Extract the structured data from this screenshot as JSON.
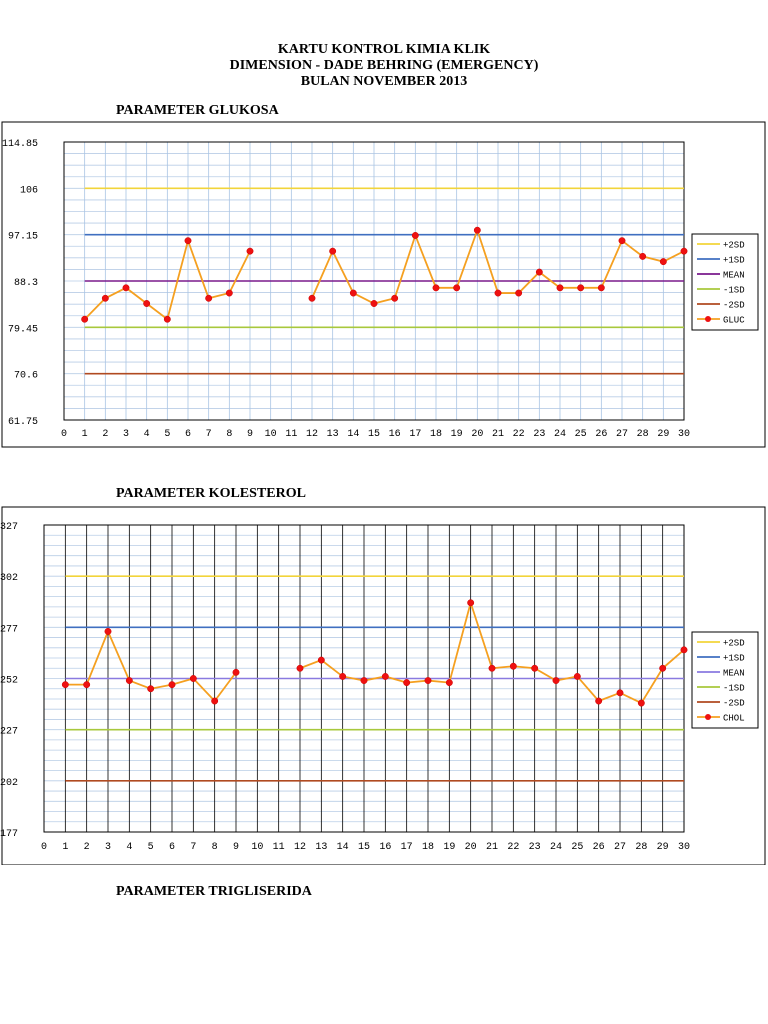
{
  "header": {
    "line1": "KARTU KONTROL KIMIA KLIK",
    "line2": "DIMENSION - DADE BEHRING (EMERGENCY)",
    "line3": "BULAN NOVEMBER 2013"
  },
  "sections": {
    "glukosa": "PARAMETER GLUKOSA",
    "kolesterol": "PARAMETER KOLESTEROL",
    "trigliserida": "PARAMETER TRIGLISERIDA"
  },
  "chart_data": [
    {
      "type": "line",
      "title": "PARAMETER GLUKOSA",
      "xlim": [
        0,
        30
      ],
      "ylim": [
        61.75,
        114.85
      ],
      "yticks": [
        61.75,
        70.6,
        79.45,
        88.3,
        97.15,
        106,
        114.85
      ],
      "ytick_labels": [
        "61.75",
        "70.6",
        "79.45",
        "88.3",
        "97.15",
        "106",
        "114.85"
      ],
      "xticks": [
        0,
        1,
        2,
        3,
        4,
        5,
        6,
        7,
        8,
        9,
        10,
        11,
        12,
        13,
        14,
        15,
        16,
        17,
        18,
        19,
        20,
        21,
        22,
        23,
        24,
        25,
        26,
        27,
        28,
        29,
        30
      ],
      "grid": "vertical and horizontal",
      "control_lines": [
        {
          "name": "+2SD",
          "value": 106,
          "color": "#f2d43a"
        },
        {
          "name": "+1SD",
          "value": 97.15,
          "color": "#3f6fc0"
        },
        {
          "name": "MEAN",
          "value": 88.3,
          "color": "#7a1a8c"
        },
        {
          "name": "-1SD",
          "value": 79.45,
          "color": "#a8c83c"
        },
        {
          "name": "-2SD",
          "value": 70.6,
          "color": "#b04a20"
        }
      ],
      "series": [
        {
          "name": "GLUC",
          "color": "#f5a020",
          "marker_color": "#ee1111",
          "x": [
            1,
            2,
            3,
            4,
            5,
            6,
            7,
            8,
            9,
            12,
            13,
            14,
            15,
            16,
            17,
            18,
            19,
            20,
            21,
            22,
            23,
            24,
            25,
            26,
            27,
            28,
            29,
            30
          ],
          "values": [
            81,
            85,
            87,
            84,
            81,
            96,
            85,
            86,
            94,
            85,
            94,
            86,
            84,
            85,
            97,
            87,
            87,
            98,
            86,
            86,
            90,
            87,
            87,
            87,
            96,
            93,
            92,
            94
          ],
          "segments": [
            [
              1,
              9
            ],
            [
              12,
              30
            ]
          ]
        }
      ],
      "legend": [
        "+2SD",
        "+1SD",
        "MEAN",
        "-1SD",
        "-2SD",
        "GLUC"
      ],
      "legend_position": "right"
    },
    {
      "type": "line",
      "title": "PARAMETER KOLESTEROL",
      "xlim": [
        0,
        30
      ],
      "ylim": [
        177,
        327
      ],
      "yticks": [
        177,
        202,
        227,
        252,
        277,
        302,
        327
      ],
      "ytick_labels": [
        "177",
        "202",
        "227",
        "252",
        "277",
        "302",
        "327"
      ],
      "xticks": [
        0,
        1,
        2,
        3,
        4,
        5,
        6,
        7,
        8,
        9,
        10,
        11,
        12,
        13,
        14,
        15,
        16,
        17,
        18,
        19,
        20,
        21,
        22,
        23,
        24,
        25,
        26,
        27,
        28,
        29,
        30
      ],
      "grid": "vertical and horizontal",
      "control_lines": [
        {
          "name": "+2SD",
          "value": 302,
          "color": "#f2d43a"
        },
        {
          "name": "+1SD",
          "value": 277,
          "color": "#3f6fc0"
        },
        {
          "name": "MEAN",
          "value": 252,
          "color": "#8a7ae0"
        },
        {
          "name": "-1SD",
          "value": 227,
          "color": "#a8c83c"
        },
        {
          "name": "-2SD",
          "value": 202,
          "color": "#b04a20"
        }
      ],
      "series": [
        {
          "name": "CHOL",
          "color": "#f5a020",
          "marker_color": "#ee1111",
          "x": [
            1,
            2,
            3,
            4,
            5,
            6,
            7,
            8,
            9,
            12,
            13,
            14,
            15,
            16,
            17,
            18,
            19,
            20,
            21,
            22,
            23,
            24,
            25,
            26,
            27,
            28,
            29,
            30
          ],
          "values": [
            249,
            249,
            275,
            251,
            247,
            249,
            252,
            241,
            255,
            257,
            261,
            253,
            251,
            253,
            250,
            251,
            250,
            289,
            257,
            258,
            257,
            251,
            253,
            241,
            245,
            240,
            257,
            266
          ],
          "segments": [
            [
              1,
              9
            ],
            [
              12,
              30
            ]
          ]
        }
      ],
      "legend": [
        "+2SD",
        "+1SD",
        "MEAN",
        "-1SD",
        "-2SD",
        "CHOL"
      ],
      "legend_position": "right"
    }
  ]
}
